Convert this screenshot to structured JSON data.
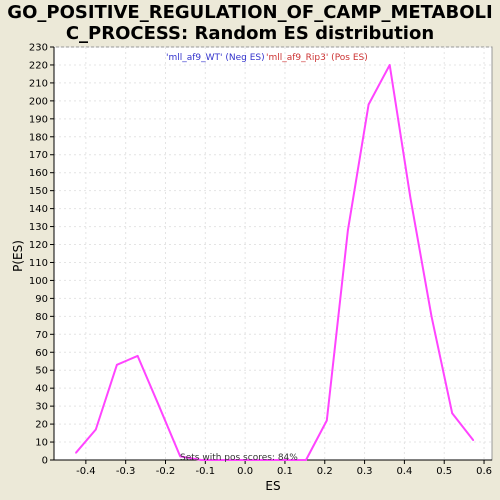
{
  "chart_data": {
    "type": "line",
    "title_line1": "GO_POSITIVE_REGULATION_OF_CAMP_METABOLI",
    "title_line2": "C_PROCESS: Random ES distribution",
    "xlabel": "ES",
    "ylabel": "P(ES)",
    "xlim": [
      -0.48,
      0.62
    ],
    "ylim": [
      0,
      230
    ],
    "x_ticks": [
      -0.4,
      -0.3,
      -0.2,
      -0.1,
      0.0,
      0.1,
      0.2,
      0.3,
      0.4,
      0.5,
      0.6
    ],
    "x_tick_labels": [
      "-0.4",
      "-0.3",
      "-0.2",
      "-0.1",
      "0.0",
      "0.1",
      "0.2",
      "0.3",
      "0.4",
      "0.5",
      "0.6"
    ],
    "y_ticks": [
      0,
      10,
      20,
      30,
      40,
      50,
      60,
      70,
      80,
      90,
      100,
      110,
      120,
      130,
      140,
      150,
      160,
      170,
      180,
      190,
      200,
      210,
      220,
      230
    ],
    "y_tick_labels": [
      "0",
      "10",
      "20",
      "30",
      "40",
      "50",
      "60",
      "70",
      "80",
      "90",
      "100",
      "110",
      "120",
      "130",
      "140",
      "150",
      "160",
      "170",
      "180",
      "190",
      "200",
      "210",
      "220",
      "230"
    ],
    "grid": true,
    "legend": [
      {
        "label": "'mll_af9_WT' (Neg ES)",
        "color": "#3333cc"
      },
      {
        "label": "'mll_af9_Rip3' (Pos ES)",
        "color": "#cc3333"
      }
    ],
    "annotation": "Sets with pos scores: 84%",
    "series": [
      {
        "color": "#ff44ff",
        "x": [
          -0.425,
          -0.375,
          -0.322,
          -0.27,
          -0.218,
          -0.163,
          -0.11,
          -0.058,
          -0.005,
          0.048,
          0.1,
          0.153,
          0.205,
          0.258,
          0.31,
          0.363,
          0.415,
          0.468,
          0.52,
          0.573
        ],
        "y": [
          4,
          17,
          53,
          58,
          31,
          2,
          0,
          0,
          0,
          0,
          0,
          0,
          22,
          128,
          198,
          220,
          146,
          80,
          26,
          11
        ]
      }
    ]
  }
}
